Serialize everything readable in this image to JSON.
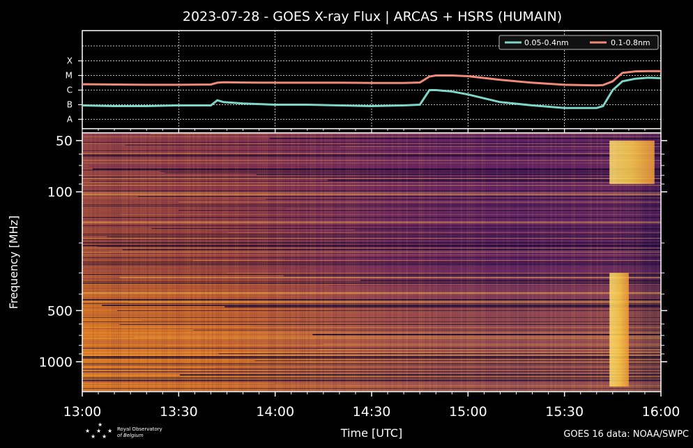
{
  "figure": {
    "title": "2023-07-28 - GOES X-ray Flux | ARCAS + HSRS (HUMAIN)",
    "credit": "GOES 16 data: NOAA/SWPC",
    "logo": {
      "line1": "Royal Observatory",
      "line2": "of Belgium"
    }
  },
  "colors": {
    "short_channel": "#7fd6c8",
    "long_channel": "#f08a78"
  },
  "chart_data": [
    {
      "type": "line",
      "title": "",
      "xlabel": "",
      "ylabel": "",
      "x_range": [
        "13:00",
        "16:00"
      ],
      "y_scale": "log",
      "y_ticks": [
        "A",
        "B",
        "C",
        "M",
        "X"
      ],
      "grid": true,
      "legend_position": "top-right",
      "x": [
        "13:00",
        "13:10",
        "13:20",
        "13:30",
        "13:40",
        "13:42",
        "13:44",
        "13:50",
        "14:00",
        "14:10",
        "14:20",
        "14:30",
        "14:40",
        "14:45",
        "14:48",
        "14:50",
        "14:55",
        "15:00",
        "15:10",
        "15:20",
        "15:30",
        "15:40",
        "15:42",
        "15:45",
        "15:48",
        "15:52",
        "15:56",
        "16:00"
      ],
      "series": [
        {
          "name": "0.05-0.4nm",
          "values": [
            "B0.9",
            "B0.8",
            "B0.8",
            "B0.9",
            "B0.9",
            "B2.0",
            "B1.5",
            "B1.2",
            "B1.0",
            "B1.0",
            "B0.9",
            "B0.8",
            "B0.9",
            "B1.0",
            "C1.0",
            "C1.0",
            "C0.8",
            "C0.5",
            "B1.5",
            "B0.9",
            "B0.6",
            "B0.6",
            "B0.8",
            "C1.0",
            "C4.0",
            "C6.0",
            "C7.0",
            "C6.5"
          ]
        },
        {
          "name": "0.1-0.8nm",
          "values": [
            "C2.5",
            "C2.4",
            "C2.3",
            "C2.3",
            "C2.4",
            "C3.2",
            "C3.4",
            "C3.3",
            "C3.2",
            "C3.2",
            "C3.2",
            "C3.1",
            "C3.1",
            "C3.3",
            "C8.5",
            "M1.0",
            "M1.0",
            "M0.9",
            "C5.0",
            "C3.2",
            "C2.3",
            "C2.1",
            "C2.2",
            "C4.0",
            "M1.5",
            "M1.9",
            "M2.0",
            "M2.0"
          ]
        }
      ]
    },
    {
      "type": "heatmap",
      "title": "",
      "xlabel": "Time [UTC]",
      "ylabel": "Frequency [MHz]",
      "x_range": [
        "13:00",
        "16:00"
      ],
      "x_ticks": [
        "13:00",
        "13:30",
        "14:00",
        "14:30",
        "15:00",
        "15:30",
        "16:00"
      ],
      "y_range_mhz": [
        45,
        1500
      ],
      "y_scale": "log",
      "y_ticks": [
        50,
        100,
        500,
        1000
      ],
      "events": [
        {
          "time_start": "15:44",
          "time_end": "15:58",
          "freq_low": 50,
          "freq_high": 90,
          "description": ""
        },
        {
          "time_start": "15:44",
          "time_end": "15:50",
          "freq_low": 300,
          "freq_high": 1400,
          "description": ""
        }
      ]
    }
  ]
}
